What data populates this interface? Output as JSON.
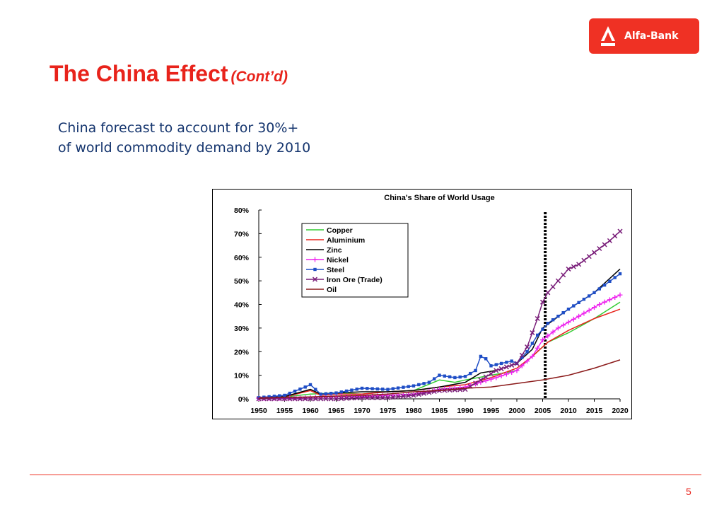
{
  "brand": {
    "logo_text": "Alfa-Bank",
    "color": "#ef3124"
  },
  "slide": {
    "title": "The China Effect",
    "title_suffix": "(Cont’d)",
    "subtitle_lines": [
      "China forecast to account for 30%+",
      "of world commodity demand by 2010"
    ],
    "page_number": "5"
  },
  "chart_data": {
    "type": "line",
    "title": "China's Share of World Usage",
    "xlabel": "",
    "ylabel": "",
    "xlim": [
      1950,
      2020
    ],
    "ylim": [
      0,
      80
    ],
    "x_ticks": [
      1950,
      1955,
      1960,
      1965,
      1970,
      1975,
      1980,
      1985,
      1990,
      1995,
      2000,
      2005,
      2010,
      2015,
      2020
    ],
    "y_ticks": [
      0,
      10,
      20,
      30,
      40,
      50,
      60,
      70,
      80
    ],
    "y_tick_labels": [
      "0%",
      "10%",
      "20%",
      "30%",
      "40%",
      "50%",
      "60%",
      "70%",
      "80%"
    ],
    "grid": false,
    "legend_placement": "top-left",
    "annotation": {
      "type": "vertical-dashed-line",
      "x": 2005.5
    },
    "series": [
      {
        "name": "Copper",
        "color": "#33cc33",
        "marker": "none",
        "points": [
          [
            1950,
            0.5
          ],
          [
            1955,
            0.8
          ],
          [
            1960,
            2
          ],
          [
            1965,
            2.5
          ],
          [
            1970,
            2
          ],
          [
            1975,
            3
          ],
          [
            1980,
            3.5
          ],
          [
            1985,
            8
          ],
          [
            1988,
            7
          ],
          [
            1990,
            8
          ],
          [
            1995,
            10
          ],
          [
            2000,
            12
          ],
          [
            2003,
            18
          ],
          [
            2006,
            24
          ],
          [
            2010,
            28
          ],
          [
            2015,
            34
          ],
          [
            2020,
            41
          ]
        ]
      },
      {
        "name": "Aluminium",
        "color": "#e8231b",
        "marker": "none",
        "points": [
          [
            1950,
            0.3
          ],
          [
            1955,
            0.8
          ],
          [
            1960,
            3.5
          ],
          [
            1962,
            1.5
          ],
          [
            1965,
            2
          ],
          [
            1970,
            2
          ],
          [
            1975,
            3
          ],
          [
            1980,
            3.5
          ],
          [
            1985,
            5
          ],
          [
            1990,
            6
          ],
          [
            1995,
            9
          ],
          [
            2000,
            13
          ],
          [
            2003,
            18
          ],
          [
            2006,
            24
          ],
          [
            2010,
            29
          ],
          [
            2015,
            34
          ],
          [
            2020,
            38
          ]
        ]
      },
      {
        "name": "Zinc",
        "color": "#000000",
        "marker": "none",
        "points": [
          [
            1950,
            0.5
          ],
          [
            1955,
            1
          ],
          [
            1960,
            4
          ],
          [
            1962,
            2
          ],
          [
            1965,
            2.5
          ],
          [
            1970,
            3
          ],
          [
            1975,
            3
          ],
          [
            1980,
            3.5
          ],
          [
            1985,
            5
          ],
          [
            1990,
            7
          ],
          [
            1993,
            11
          ],
          [
            1996,
            12
          ],
          [
            2000,
            15
          ],
          [
            2003,
            21
          ],
          [
            2005,
            30
          ],
          [
            2010,
            38
          ],
          [
            2015,
            45
          ],
          [
            2020,
            55
          ]
        ]
      },
      {
        "name": "Nickel",
        "color": "#ee22ee",
        "marker": "plus",
        "points": [
          [
            1950,
            0.2
          ],
          [
            1955,
            0.3
          ],
          [
            1960,
            0.5
          ],
          [
            1965,
            1
          ],
          [
            1970,
            1
          ],
          [
            1975,
            1.5
          ],
          [
            1980,
            2
          ],
          [
            1985,
            4
          ],
          [
            1990,
            5
          ],
          [
            1993,
            7
          ],
          [
            1996,
            9
          ],
          [
            2000,
            12
          ],
          [
            2003,
            18
          ],
          [
            2005,
            25
          ],
          [
            2008,
            30
          ],
          [
            2012,
            35
          ],
          [
            2016,
            40
          ],
          [
            2020,
            44
          ]
        ]
      },
      {
        "name": "Steel",
        "color": "#1f4ec6",
        "marker": "square",
        "points": [
          [
            1950,
            0.5
          ],
          [
            1955,
            1.5
          ],
          [
            1959,
            5
          ],
          [
            1960,
            6
          ],
          [
            1962,
            2
          ],
          [
            1965,
            2.5
          ],
          [
            1970,
            4.5
          ],
          [
            1975,
            4
          ],
          [
            1980,
            5.5
          ],
          [
            1983,
            7
          ],
          [
            1985,
            10
          ],
          [
            1988,
            9
          ],
          [
            1990,
            9.5
          ],
          [
            1992,
            12
          ],
          [
            1993,
            18
          ],
          [
            1994,
            17
          ],
          [
            1995,
            14
          ],
          [
            1997,
            15
          ],
          [
            1999,
            16
          ],
          [
            2000,
            15
          ],
          [
            2002,
            20
          ],
          [
            2004,
            27
          ],
          [
            2006,
            32
          ],
          [
            2008,
            35
          ],
          [
            2010,
            38
          ],
          [
            2015,
            45
          ],
          [
            2020,
            53
          ]
        ]
      },
      {
        "name": "Iron Ore (Trade)",
        "color": "#7a1f7a",
        "marker": "x",
        "points": [
          [
            1950,
            0
          ],
          [
            1955,
            0
          ],
          [
            1960,
            0
          ],
          [
            1965,
            0
          ],
          [
            1970,
            0.5
          ],
          [
            1975,
            0.5
          ],
          [
            1980,
            1.5
          ],
          [
            1985,
            3.5
          ],
          [
            1990,
            4
          ],
          [
            1993,
            8
          ],
          [
            1996,
            12
          ],
          [
            2000,
            15
          ],
          [
            2002,
            22
          ],
          [
            2004,
            34
          ],
          [
            2005,
            41
          ],
          [
            2006,
            45
          ],
          [
            2008,
            50
          ],
          [
            2010,
            55
          ],
          [
            2012,
            57
          ],
          [
            2015,
            62
          ],
          [
            2018,
            67
          ],
          [
            2020,
            71
          ]
        ]
      },
      {
        "name": "Oil",
        "color": "#8b1a1a",
        "marker": "none",
        "points": [
          [
            1950,
            0.3
          ],
          [
            1960,
            0.8
          ],
          [
            1965,
            1.2
          ],
          [
            1970,
            1.5
          ],
          [
            1975,
            2
          ],
          [
            1980,
            3
          ],
          [
            1985,
            3.5
          ],
          [
            1990,
            4.5
          ],
          [
            1995,
            5
          ],
          [
            2000,
            6.5
          ],
          [
            2005,
            8
          ],
          [
            2010,
            10
          ],
          [
            2015,
            13
          ],
          [
            2020,
            16.5
          ]
        ]
      }
    ]
  }
}
